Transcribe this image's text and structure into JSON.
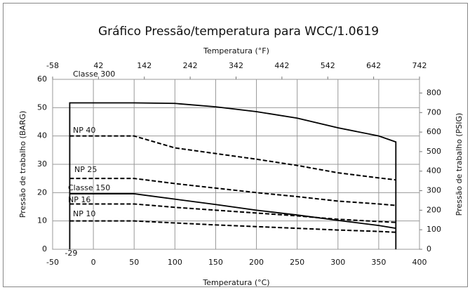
{
  "chart_data": {
    "type": "line",
    "title": "Gráfico Pressão/temperatura para WCC/1.0619",
    "xlabel": "Temperatura (°C)",
    "x2label": "Temperatura (°F)",
    "ylabel": "Pressão de trabalho (BARG)",
    "y2label": "Pressão de trabalho (PSIG)",
    "xlim": [
      -50,
      400
    ],
    "xticks": [
      -50,
      0,
      50,
      100,
      150,
      200,
      250,
      300,
      350,
      400
    ],
    "x2lim": [
      -58,
      742
    ],
    "x2ticks": [
      -58,
      42,
      142,
      242,
      342,
      442,
      542,
      642,
      742
    ],
    "ylim": [
      0,
      60
    ],
    "yticks": [
      0,
      10,
      20,
      30,
      40,
      50,
      60
    ],
    "y2lim": [
      0,
      870
    ],
    "y2ticks": [
      0,
      100,
      200,
      300,
      400,
      500,
      600,
      700,
      800
    ],
    "grid": true,
    "annotations": [
      {
        "text": "-29",
        "x": -29
      }
    ],
    "series": [
      {
        "name": "Classe 300",
        "color": "#000000",
        "style": "solid",
        "x": [
          -29,
          -29,
          50,
          100,
          150,
          200,
          250,
          300,
          350,
          371,
          371
        ],
        "values": [
          0,
          51.7,
          51.7,
          51.5,
          50.3,
          48.6,
          46.3,
          42.9,
          40.0,
          37.9,
          0
        ]
      },
      {
        "name": "NP 40",
        "color": "#000000",
        "style": "dashed",
        "x": [
          -29,
          50,
          100,
          150,
          200,
          250,
          300,
          350,
          371
        ],
        "values": [
          40,
          40,
          35.8,
          33.8,
          31.8,
          29.6,
          27.0,
          25.2,
          24.5
        ]
      },
      {
        "name": "NP 25",
        "color": "#000000",
        "style": "dashed",
        "x": [
          -29,
          50,
          100,
          150,
          200,
          250,
          300,
          350,
          371
        ],
        "values": [
          25,
          25,
          23.2,
          21.6,
          20.0,
          18.6,
          17.0,
          16.0,
          15.5
        ]
      },
      {
        "name": "Classe 150",
        "color": "#000000",
        "style": "solid",
        "x": [
          -29,
          50,
          100,
          150,
          200,
          250,
          300,
          350,
          371
        ],
        "values": [
          19.6,
          19.6,
          17.7,
          15.8,
          13.8,
          12.1,
          10.2,
          8.4,
          7.4
        ]
      },
      {
        "name": "NP 16",
        "color": "#000000",
        "style": "dashed",
        "x": [
          -29,
          50,
          100,
          150,
          200,
          250,
          300,
          350,
          371
        ],
        "values": [
          16,
          16,
          14.8,
          13.8,
          12.8,
          11.8,
          10.6,
          9.8,
          9.5
        ]
      },
      {
        "name": "NP 10",
        "color": "#000000",
        "style": "dashed",
        "x": [
          -29,
          50,
          100,
          150,
          200,
          250,
          300,
          350,
          371
        ],
        "values": [
          10,
          10,
          9.3,
          8.6,
          8.0,
          7.4,
          6.8,
          6.3,
          6.0
        ]
      }
    ]
  }
}
